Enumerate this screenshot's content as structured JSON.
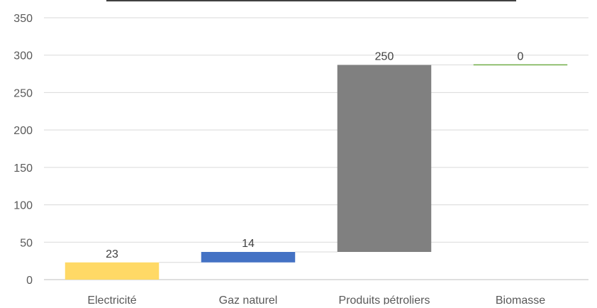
{
  "chart_data": {
    "type": "waterfall",
    "title": "",
    "xlabel": "",
    "ylabel": "",
    "categories": [
      "Electricité",
      "Gaz naturel",
      "Produits pétroliers",
      "Biomasse"
    ],
    "values": [
      23,
      14,
      250,
      0
    ],
    "bar_bases": [
      0,
      23,
      37,
      287
    ],
    "data_labels": [
      "23",
      "14",
      "250",
      "0"
    ],
    "colors": [
      "#FFD966",
      "#4472C4",
      "#808080",
      "#70AD47"
    ],
    "ylim": [
      0,
      350
    ],
    "yticks": [
      0,
      50,
      100,
      150,
      200,
      250,
      300,
      350
    ],
    "grid": true,
    "legend": "none"
  }
}
